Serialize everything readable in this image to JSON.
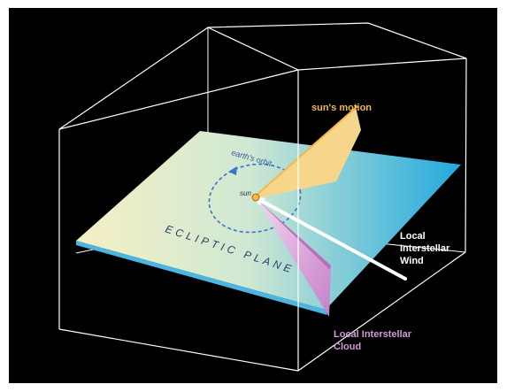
{
  "labels": {
    "suns_motion": "sun's motion",
    "earths_orbit": "earth's orbit",
    "sun": "sun",
    "ecliptic_plane": "ECLIPTIC PLANE",
    "local_interstellar_wind": [
      "Local",
      "Interstellar",
      "Wind"
    ],
    "local_interstellar_cloud": [
      "Local Interstellar",
      "Cloud"
    ]
  },
  "colors": {
    "background": "#000000",
    "box_edges": "#ffffff",
    "plane_left": "#f6f0c4",
    "plane_right": "#22a9de",
    "suns_motion": "#f2b84a",
    "wind": "#ffffff",
    "cloud": "#d29bd4",
    "orbit": "#3a73c8"
  }
}
